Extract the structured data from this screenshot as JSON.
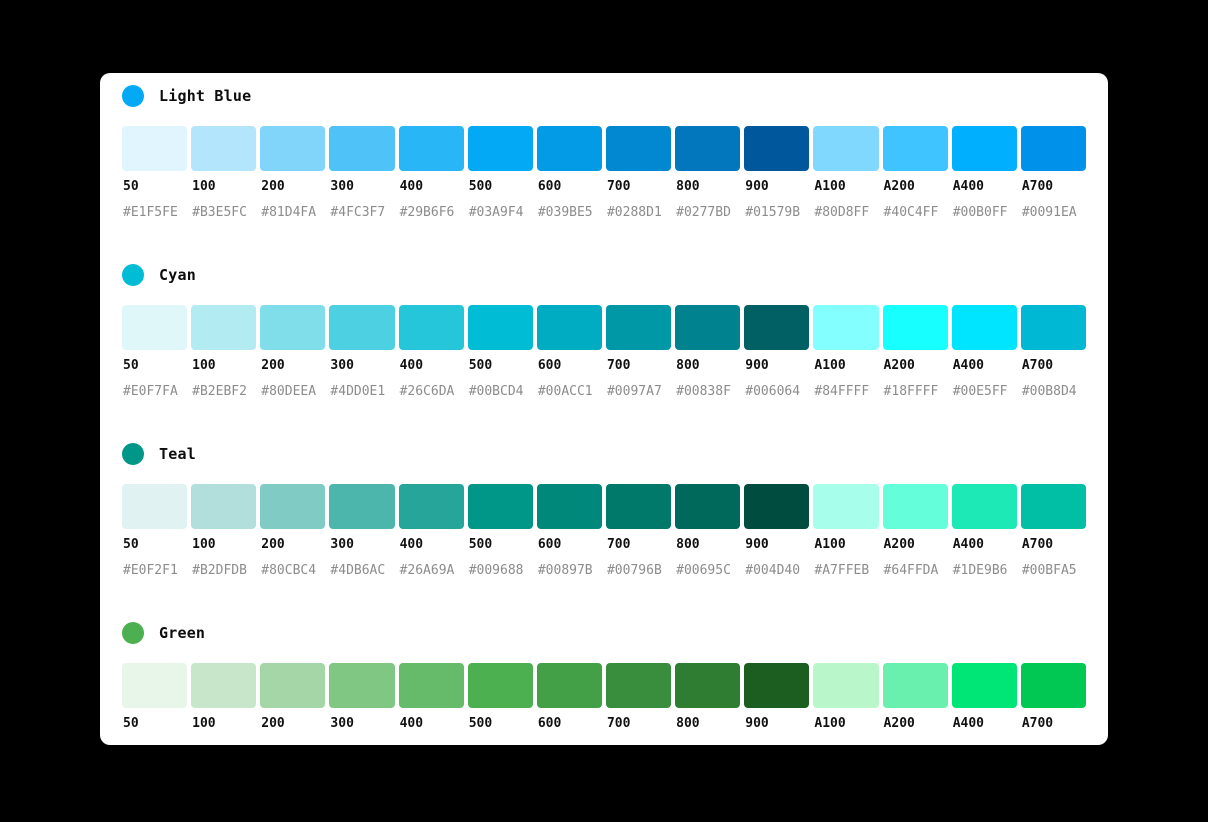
{
  "page": {
    "background_color": "#000000",
    "card_background_color": "#FFFFFF",
    "label_text_color": "#111111",
    "hex_text_color": "#8C8C8C"
  },
  "palettes": [
    {
      "name": "Light Blue",
      "dot_color": "#03A9F4",
      "hex_labels_visible": true,
      "swatches": [
        {
          "label": "50",
          "hex": "#E1F5FE"
        },
        {
          "label": "100",
          "hex": "#B3E5FC"
        },
        {
          "label": "200",
          "hex": "#81D4FA"
        },
        {
          "label": "300",
          "hex": "#4FC3F7"
        },
        {
          "label": "400",
          "hex": "#29B6F6"
        },
        {
          "label": "500",
          "hex": "#03A9F4"
        },
        {
          "label": "600",
          "hex": "#039BE5"
        },
        {
          "label": "700",
          "hex": "#0288D1"
        },
        {
          "label": "800",
          "hex": "#0277BD"
        },
        {
          "label": "900",
          "hex": "#01579B"
        },
        {
          "label": "A100",
          "hex": "#80D8FF"
        },
        {
          "label": "A200",
          "hex": "#40C4FF"
        },
        {
          "label": "A400",
          "hex": "#00B0FF"
        },
        {
          "label": "A700",
          "hex": "#0091EA"
        }
      ]
    },
    {
      "name": "Cyan",
      "dot_color": "#00BCD4",
      "hex_labels_visible": true,
      "swatches": [
        {
          "label": "50",
          "hex": "#E0F7FA"
        },
        {
          "label": "100",
          "hex": "#B2EBF2"
        },
        {
          "label": "200",
          "hex": "#80DEEA"
        },
        {
          "label": "300",
          "hex": "#4DD0E1"
        },
        {
          "label": "400",
          "hex": "#26C6DA"
        },
        {
          "label": "500",
          "hex": "#00BCD4"
        },
        {
          "label": "600",
          "hex": "#00ACC1"
        },
        {
          "label": "700",
          "hex": "#0097A7"
        },
        {
          "label": "800",
          "hex": "#00838F"
        },
        {
          "label": "900",
          "hex": "#006064"
        },
        {
          "label": "A100",
          "hex": "#84FFFF"
        },
        {
          "label": "A200",
          "hex": "#18FFFF"
        },
        {
          "label": "A400",
          "hex": "#00E5FF"
        },
        {
          "label": "A700",
          "hex": "#00B8D4"
        }
      ]
    },
    {
      "name": "Teal",
      "dot_color": "#009688",
      "hex_labels_visible": true,
      "swatches": [
        {
          "label": "50",
          "hex": "#E0F2F1"
        },
        {
          "label": "100",
          "hex": "#B2DFDB"
        },
        {
          "label": "200",
          "hex": "#80CBC4"
        },
        {
          "label": "300",
          "hex": "#4DB6AC"
        },
        {
          "label": "400",
          "hex": "#26A69A"
        },
        {
          "label": "500",
          "hex": "#009688"
        },
        {
          "label": "600",
          "hex": "#00897B"
        },
        {
          "label": "700",
          "hex": "#00796B"
        },
        {
          "label": "800",
          "hex": "#00695C"
        },
        {
          "label": "900",
          "hex": "#004D40"
        },
        {
          "label": "A100",
          "hex": "#A7FFEB"
        },
        {
          "label": "A200",
          "hex": "#64FFDA"
        },
        {
          "label": "A400",
          "hex": "#1DE9B6"
        },
        {
          "label": "A700",
          "hex": "#00BFA5"
        }
      ]
    },
    {
      "name": "Green",
      "dot_color": "#4CAF50",
      "hex_labels_visible": false,
      "swatches": [
        {
          "label": "50",
          "hex": "#E8F5E9"
        },
        {
          "label": "100",
          "hex": "#C8E6C9"
        },
        {
          "label": "200",
          "hex": "#A5D6A7"
        },
        {
          "label": "300",
          "hex": "#81C784"
        },
        {
          "label": "400",
          "hex": "#66BB6A"
        },
        {
          "label": "500",
          "hex": "#4CAF50"
        },
        {
          "label": "600",
          "hex": "#43A047"
        },
        {
          "label": "700",
          "hex": "#388E3C"
        },
        {
          "label": "800",
          "hex": "#2E7D32"
        },
        {
          "label": "900",
          "hex": "#1B5E20"
        },
        {
          "label": "A100",
          "hex": "#B9F6CA"
        },
        {
          "label": "A200",
          "hex": "#69F0AE"
        },
        {
          "label": "A400",
          "hex": "#00E676"
        },
        {
          "label": "A700",
          "hex": "#00C853"
        }
      ]
    }
  ]
}
